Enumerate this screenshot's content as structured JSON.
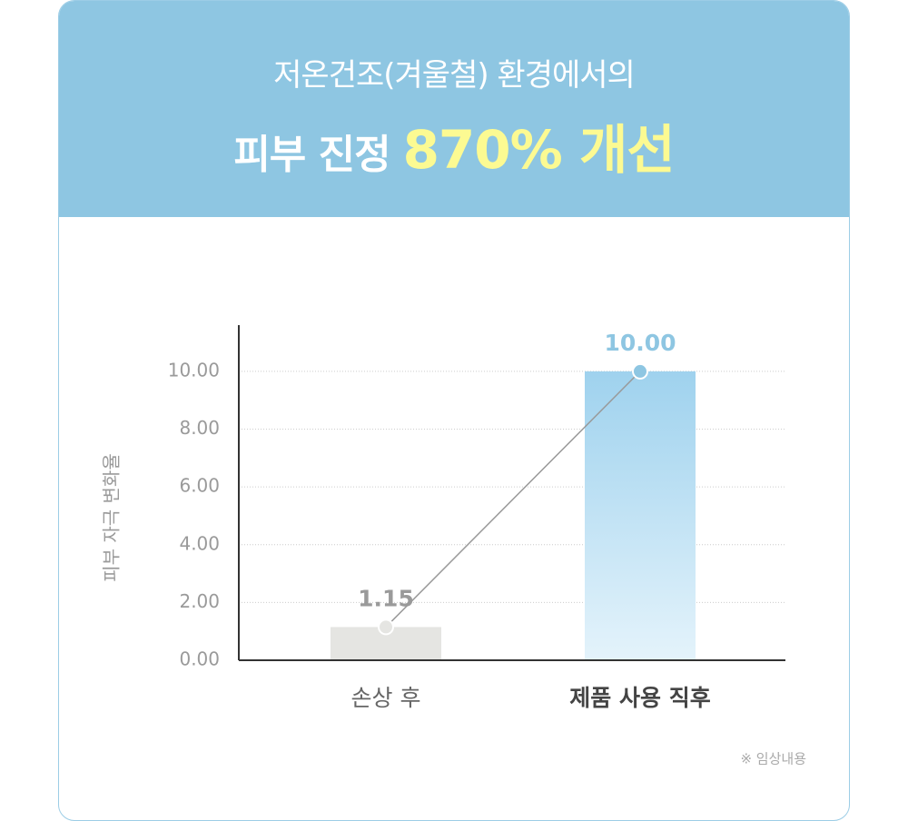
{
  "header": {
    "subtitle": "저온건조(겨울철) 환경에서의",
    "title_prefix": "피부 진정",
    "title_highlight": "870% 개선"
  },
  "chart_data": {
    "type": "bar",
    "ylabel": "피부 자극 변화율",
    "categories": [
      "손상 후",
      "제품 사용 직후"
    ],
    "values": [
      1.15,
      10
    ],
    "value_labels": [
      "1.15",
      "10.00"
    ],
    "colors": [
      "#e5e5e2",
      "#9fd2ee"
    ],
    "label_colors": [
      "#9a9a9a",
      "#8ec6e2"
    ],
    "ylim": [
      0,
      11.6
    ],
    "yticks": [
      {
        "value": 0,
        "label": "0.00"
      },
      {
        "value": 2,
        "label": "2.00"
      },
      {
        "value": 4,
        "label": "4.00"
      },
      {
        "value": 6,
        "label": "6.00"
      },
      {
        "value": 8,
        "label": "8.00"
      },
      {
        "value": 10,
        "label": "10.00"
      }
    ],
    "grid": true
  },
  "footnote": "※ 임상내용"
}
